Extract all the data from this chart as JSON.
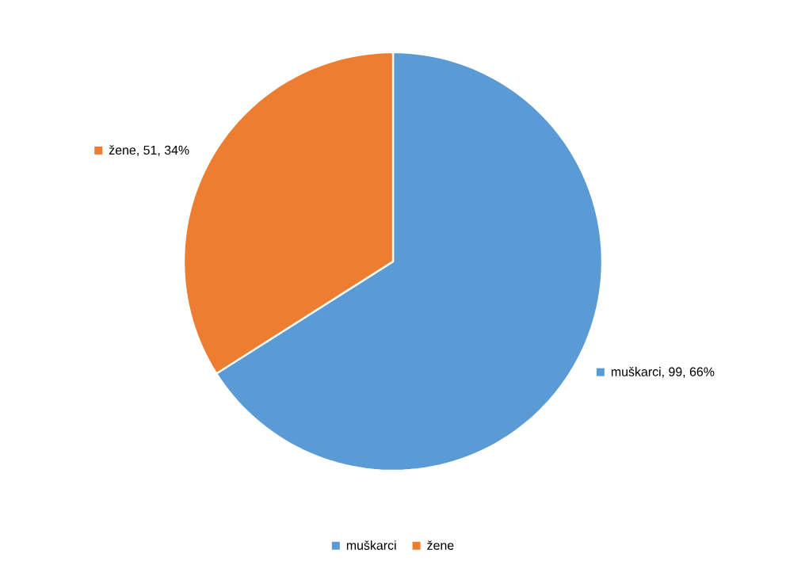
{
  "chart_data": {
    "type": "pie",
    "categories": [
      "muškarci",
      "žene"
    ],
    "values": [
      99,
      51
    ],
    "colors": [
      "#5b9bd5",
      "#ed7d31"
    ],
    "value_labels": [
      "muškarci, 99, 66%",
      "žene, 51, 34%"
    ],
    "legend": "bottom"
  }
}
